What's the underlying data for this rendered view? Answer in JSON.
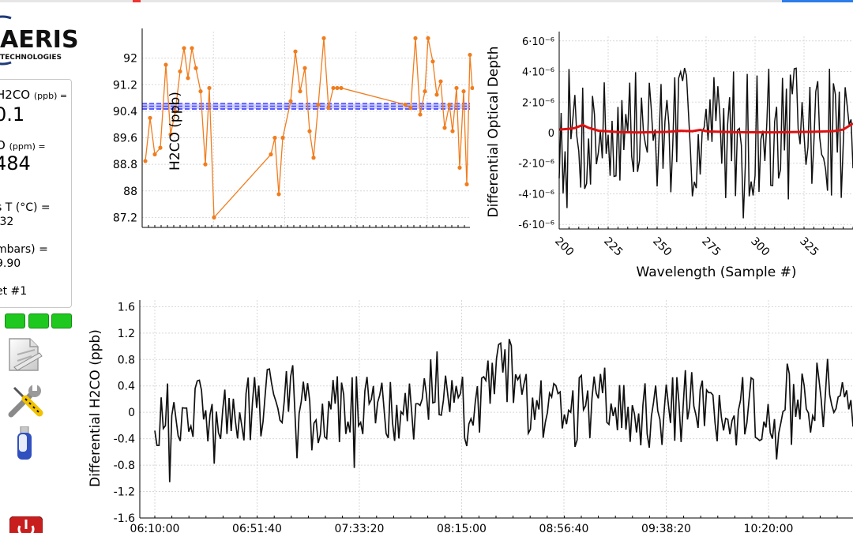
{
  "colors": {
    "orange": "#f07d1e",
    "blue_band": "#5a5aff",
    "red_line": "#e01010",
    "black_line": "#111111",
    "led_green": "#1ec81e",
    "grid": "#d8d8d8"
  },
  "logo": {
    "name": "AERIS",
    "sub": "TECHNOLOGIES"
  },
  "readings": {
    "h2co_label": "H2CO",
    "h2co_unit": "(ppb) =",
    "h2co_value": "0.1",
    "h2o_label": "O",
    "h2o_unit": "(ppm) =",
    "h2o_value": "484",
    "gas_t_label": "s T (°C) =",
    "gas_t_value": ".32",
    "press_label": "mbars) =",
    "press_value": "9.90",
    "set_label": "et #1"
  },
  "icons": [
    "edit-document-icon",
    "wrench-screwdriver-icon",
    "usb-drive-icon",
    "power-button-icon"
  ],
  "charts": {
    "ts_h2co": {
      "type": "line",
      "ylabel": "H2CO (ppb)",
      "yticks": [
        "92",
        "91.2",
        "90.4",
        "89.6",
        "88.8",
        "88",
        "87.2"
      ],
      "ylim": [
        86.9,
        92.8
      ],
      "band": [
        90.47,
        90.55,
        90.63
      ],
      "values": [
        88.9,
        90.2,
        89.1,
        89.3,
        91.8,
        89.7,
        90.4,
        91.6,
        92.3,
        91.4,
        92.3,
        91.7,
        91.0,
        88.8,
        91.1,
        87.2,
        89.1,
        89.6,
        87.9,
        89.6,
        90.7,
        92.2,
        91.0,
        91.7,
        89.8,
        89.0,
        90.6,
        92.6,
        90.5,
        91.1,
        91.1,
        91.1,
        90.6,
        90.5,
        92.6,
        90.3,
        91.0,
        92.6,
        91.9,
        90.9,
        91.3,
        89.9,
        90.6,
        89.8,
        91.1,
        88.7,
        91.0,
        88.2,
        92.1,
        91.1
      ]
    },
    "spectrum": {
      "type": "line",
      "xlabel": "Wavelength (Sample #)",
      "ylabel": "Differential Optical Depth",
      "xticks": [
        "200",
        "225",
        "250",
        "275",
        "300",
        "325"
      ],
      "yticks": [
        "6·10⁻⁶",
        "4·10⁻⁶",
        "2·10⁻⁶",
        "0",
        "-2·10⁻⁶",
        "-4·10⁻⁶",
        "-6·10⁻⁶"
      ],
      "ylim": [
        -6.3e-06,
        6.3e-06
      ],
      "x_range": [
        200,
        350
      ],
      "fit_series": [
        [
          200,
          2e-07
        ],
        [
          205,
          2.5e-07
        ],
        [
          208,
          3e-07
        ],
        [
          212,
          5e-07
        ],
        [
          215,
          3.2e-07
        ],
        [
          220,
          1.3e-07
        ],
        [
          230,
          4e-08
        ],
        [
          240,
          1e-08
        ],
        [
          255,
          5e-08
        ],
        [
          262,
          1.2e-07
        ],
        [
          268,
          1e-07
        ],
        [
          272,
          1.8e-07
        ],
        [
          276,
          8e-08
        ],
        [
          290,
          3e-08
        ],
        [
          310,
          2e-08
        ],
        [
          330,
          6e-08
        ],
        [
          340,
          1e-07
        ],
        [
          345,
          2e-07
        ],
        [
          350,
          6e-07
        ]
      ]
    },
    "diff": {
      "type": "line",
      "ylabel": "Differential H2CO (ppb)",
      "yticks": [
        "1.6",
        "1.2",
        "0.8",
        "0.4",
        "0",
        "-0.4",
        "-0.8",
        "-1.2",
        "-1.6"
      ],
      "xticks": [
        "06:10:00",
        "06:51:40",
        "07:33:20",
        "08:15:00",
        "08:56:40",
        "09:38:20",
        "10:20:00"
      ],
      "ylim": [
        -1.6,
        1.7
      ]
    }
  }
}
